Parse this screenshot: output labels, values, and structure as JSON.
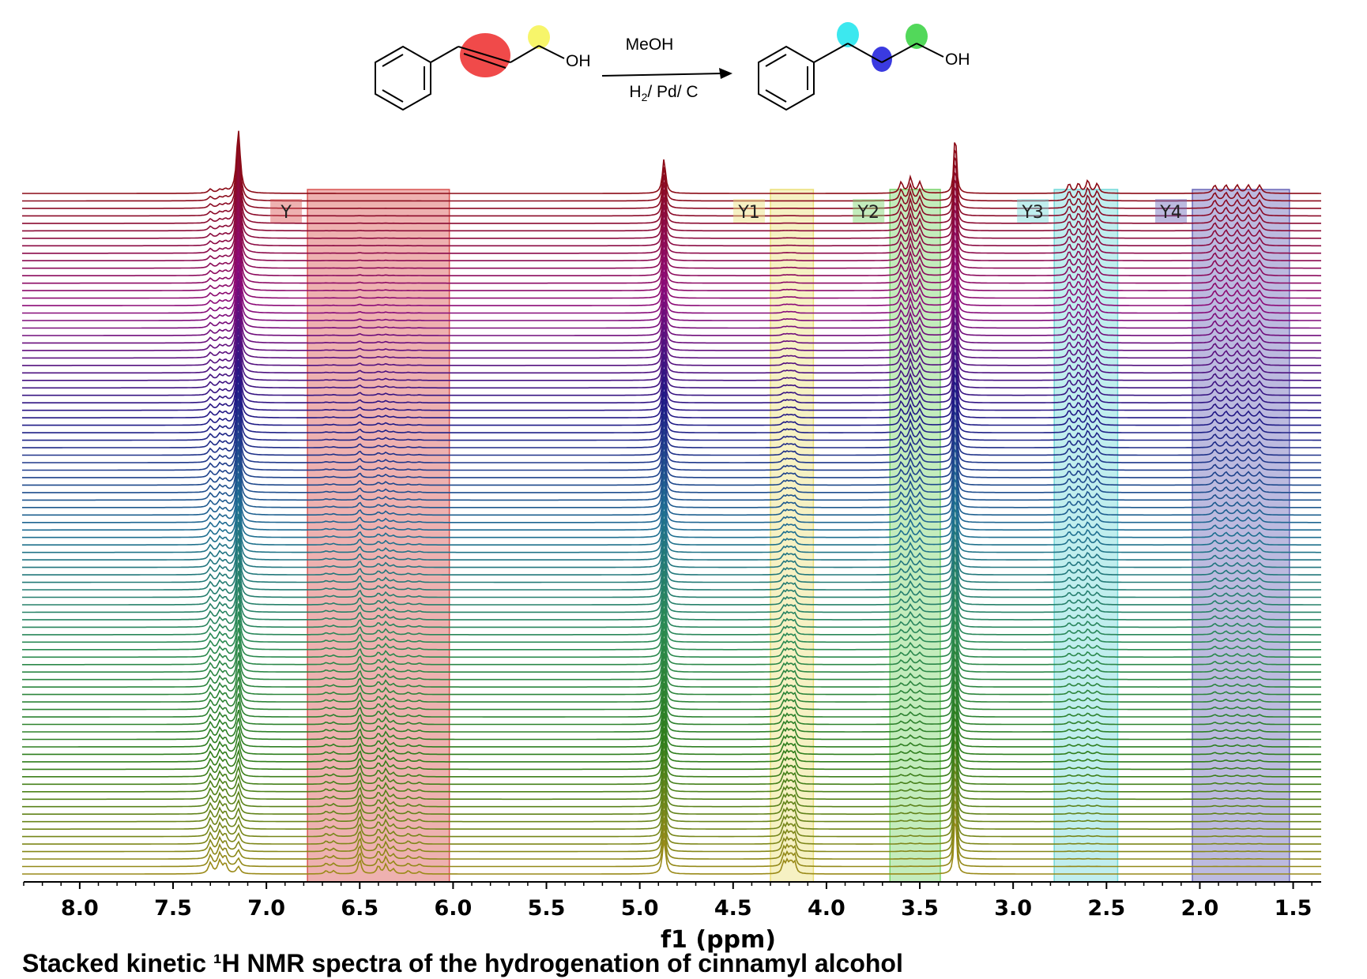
{
  "chart_data": {
    "type": "line",
    "xlabel": "f1 (ppm)",
    "x_ticks": [
      "8.0",
      "7.5",
      "7.0",
      "6.5",
      "6.0",
      "5.5",
      "5.0",
      "4.5",
      "4.0",
      "3.5",
      "3.0",
      "2.5",
      "2.0",
      "1.5"
    ],
    "x_range_ppm": [
      8.3,
      1.35
    ],
    "x_reversed": true,
    "spectra_count": 92,
    "color_gradient": [
      "#8b0a16",
      "#8c0a78",
      "#1f1785",
      "#1e6e92",
      "#2a8a52",
      "#2e7d1a",
      "#9a8a18"
    ],
    "peaks_ppm": {
      "aromatic": [
        7.3,
        7.25,
        7.22,
        7.15
      ],
      "methanol_oh": 4.87,
      "methanol_ch3": 3.31,
      "vinyl": [
        6.68,
        6.64,
        6.5,
        6.4,
        6.36,
        6.32,
        6.24,
        6.18
      ],
      "allylic_ch2": [
        4.23,
        4.21,
        4.19,
        4.17
      ],
      "product_ch2o": [
        3.6,
        3.55,
        3.5
      ],
      "product_benzylic": [
        2.7,
        2.65,
        2.6,
        2.55
      ],
      "product_middle_ch2": [
        1.92,
        1.86,
        1.8,
        1.74,
        1.68
      ]
    },
    "regions": [
      {
        "label": "Y",
        "from": 6.78,
        "to": 6.02,
        "color": "#d95350"
      },
      {
        "label": "Y1",
        "from": 4.3,
        "to": 4.07,
        "color": "#ece07a"
      },
      {
        "label": "Y2",
        "from": 3.66,
        "to": 3.39,
        "color": "#79d46b"
      },
      {
        "label": "Y3",
        "from": 2.78,
        "to": 2.44,
        "color": "#74d9d9"
      },
      {
        "label": "Y4",
        "from": 2.04,
        "to": 1.52,
        "color": "#6a67b8"
      }
    ]
  },
  "scheme": {
    "reagent_top": "MeOH",
    "reagent_bottom": "H2/ Pd/ C",
    "reactant_oh": "OH",
    "product_oh": "OH",
    "highlight_colors": {
      "double_bond": "#f04a4a",
      "ch2_oh": "#f7f56a",
      "c1": "#3ce8ef",
      "c2": "#3a3ae0",
      "c3": "#52d85a"
    }
  },
  "caption": "Stacked kinetic ¹H NMR spectra of the hydrogenation of cinnamyl alcohol"
}
